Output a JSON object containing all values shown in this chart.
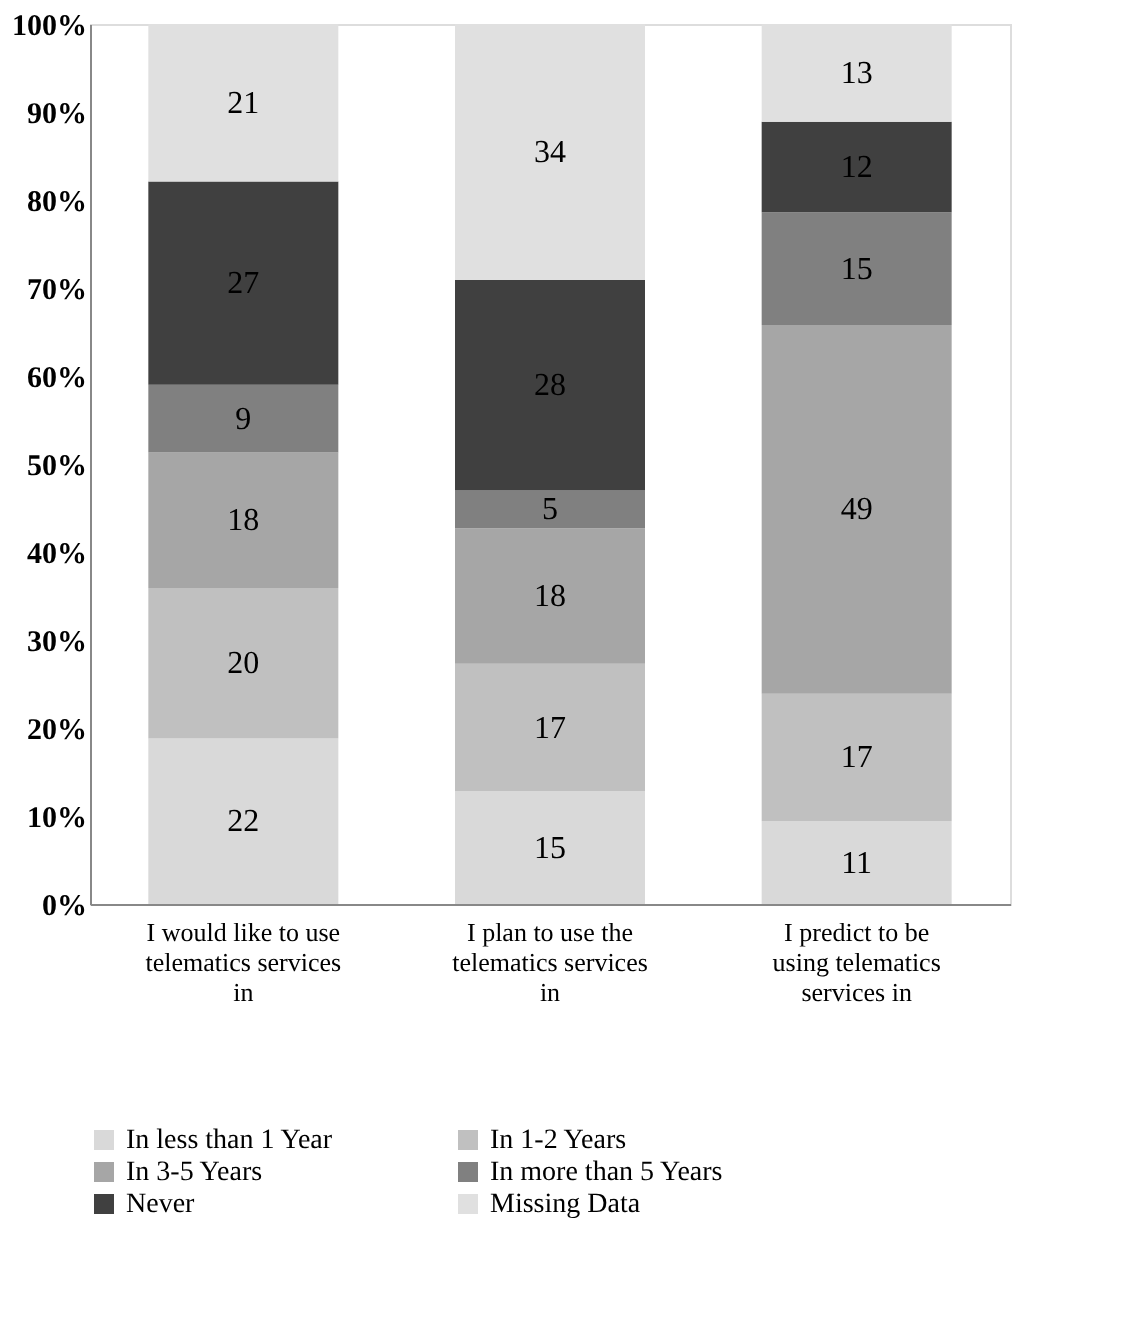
{
  "chart_data": {
    "type": "bar",
    "stacked": true,
    "categories": [
      "I would like to use telematics services in",
      "I plan to use the telematics services in",
      "I predict to be using telematics services in"
    ],
    "series": [
      {
        "name": "In less than 1 Year",
        "color": "#d9d9d9",
        "values": [
          18.8,
          12.8,
          9.4
        ]
      },
      {
        "name": "In 1-2 Years",
        "color": "#c0c0c0",
        "values": [
          17.1,
          14.5,
          14.5
        ]
      },
      {
        "name": "In 3-5 Years",
        "color": "#a6a6a6",
        "values": [
          15.4,
          15.4,
          41.9
        ]
      },
      {
        "name": "In more than 5 Years",
        "color": "#808080",
        "values": [
          7.7,
          4.3,
          12.8
        ]
      },
      {
        "name": "Never",
        "color": "#404040",
        "values": [
          23.1,
          23.9,
          10.3
        ]
      },
      {
        "name": "Missing Data",
        "color": "#e0e0e0",
        "values": [
          17.9,
          29.1,
          11.1
        ]
      }
    ],
    "annotations": [
      "22",
      "20",
      "18",
      "9",
      "27",
      "21",
      "15",
      "17",
      "18",
      "5",
      "28",
      "34",
      "11",
      "17",
      "49",
      "15",
      "12",
      "13"
    ],
    "ylim": [
      0,
      100
    ],
    "yticks": [
      {
        "value": 0,
        "label": "0%"
      },
      {
        "value": 10,
        "label": "10%"
      },
      {
        "value": 20,
        "label": "20%"
      },
      {
        "value": 30,
        "label": "30%"
      },
      {
        "value": 40,
        "label": "40%"
      },
      {
        "value": 50,
        "label": "50%"
      },
      {
        "value": 60,
        "label": "60%"
      },
      {
        "value": 70,
        "label": "70%"
      },
      {
        "value": 80,
        "label": "80%"
      },
      {
        "value": 90,
        "label": "90%"
      },
      {
        "value": 100,
        "label": "100%"
      }
    ],
    "grid": false,
    "legend": "bottom"
  }
}
